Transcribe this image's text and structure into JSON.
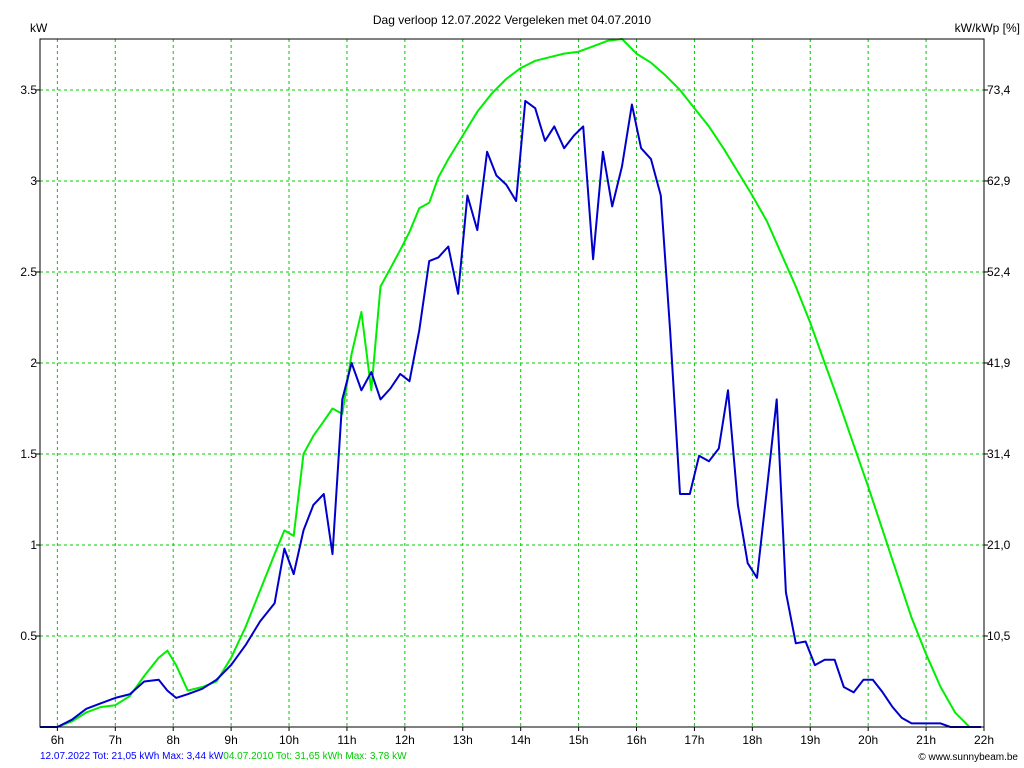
{
  "chart_data": {
    "type": "line",
    "title": "Dag  verloop 12.07.2022   Vergeleken met 04.07.2010",
    "ylabel_left": "kW",
    "ylabel_right": "kW/kWp [%]",
    "xlim": [
      5.7,
      22
    ],
    "ylim": [
      0,
      3.78
    ],
    "x_ticks": [
      {
        "value": 6,
        "label": "6h"
      },
      {
        "value": 7,
        "label": "7h"
      },
      {
        "value": 8,
        "label": "8h"
      },
      {
        "value": 9,
        "label": "9h"
      },
      {
        "value": 10,
        "label": "10h"
      },
      {
        "value": 11,
        "label": "11h"
      },
      {
        "value": 12,
        "label": "12h"
      },
      {
        "value": 13,
        "label": "13h"
      },
      {
        "value": 14,
        "label": "14h"
      },
      {
        "value": 15,
        "label": "15h"
      },
      {
        "value": 16,
        "label": "16h"
      },
      {
        "value": 17,
        "label": "17h"
      },
      {
        "value": 18,
        "label": "18h"
      },
      {
        "value": 19,
        "label": "19h"
      },
      {
        "value": 20,
        "label": "20h"
      },
      {
        "value": 21,
        "label": "21h"
      },
      {
        "value": 22,
        "label": "22h"
      }
    ],
    "y_ticks_left": [
      {
        "value": 0.5,
        "label": "0.5"
      },
      {
        "value": 1,
        "label": "1"
      },
      {
        "value": 1.5,
        "label": "1.5"
      },
      {
        "value": 2,
        "label": "2"
      },
      {
        "value": 2.5,
        "label": "2.5"
      },
      {
        "value": 3,
        "label": "3"
      },
      {
        "value": 3.5,
        "label": "3.5"
      }
    ],
    "y_ticks_right": [
      {
        "value": 0.5,
        "label": "10,5"
      },
      {
        "value": 1,
        "label": "21,0"
      },
      {
        "value": 1.5,
        "label": "31,4"
      },
      {
        "value": 2,
        "label": "41,9"
      },
      {
        "value": 2.5,
        "label": "52,4"
      },
      {
        "value": 3,
        "label": "62,9"
      },
      {
        "value": 3.5,
        "label": "73,4"
      }
    ],
    "grid": true,
    "series": [
      {
        "name": "04.07.2010",
        "color": "#00ee00",
        "x": [
          5.7,
          6.0,
          6.25,
          6.5,
          6.75,
          7.0,
          7.25,
          7.5,
          7.75,
          7.9,
          8.05,
          8.25,
          8.5,
          8.75,
          9.0,
          9.25,
          9.5,
          9.75,
          9.92,
          10.08,
          10.25,
          10.42,
          10.6,
          10.75,
          10.92,
          11.08,
          11.25,
          11.42,
          11.58,
          11.75,
          11.92,
          12.08,
          12.25,
          12.42,
          12.58,
          12.75,
          13.0,
          13.25,
          13.5,
          13.75,
          14.0,
          14.25,
          14.5,
          14.75,
          15.0,
          15.25,
          15.5,
          15.75,
          16.0,
          16.25,
          16.5,
          16.75,
          17.0,
          17.25,
          17.5,
          17.75,
          18.0,
          18.25,
          18.5,
          18.75,
          19.0,
          19.25,
          19.5,
          19.75,
          20.0,
          20.25,
          20.5,
          20.75,
          21.0,
          21.25,
          21.5,
          21.75,
          21.95
        ],
        "values": [
          0.0,
          0.0,
          0.03,
          0.08,
          0.11,
          0.12,
          0.17,
          0.28,
          0.38,
          0.42,
          0.34,
          0.2,
          0.22,
          0.25,
          0.38,
          0.55,
          0.75,
          0.95,
          1.08,
          1.05,
          1.5,
          1.6,
          1.68,
          1.75,
          1.72,
          2.05,
          2.28,
          1.85,
          2.42,
          2.52,
          2.62,
          2.72,
          2.85,
          2.88,
          3.02,
          3.12,
          3.25,
          3.38,
          3.48,
          3.56,
          3.62,
          3.66,
          3.68,
          3.7,
          3.71,
          3.74,
          3.77,
          3.78,
          3.7,
          3.65,
          3.58,
          3.5,
          3.4,
          3.3,
          3.18,
          3.05,
          2.92,
          2.78,
          2.6,
          2.42,
          2.22,
          2.0,
          1.78,
          1.55,
          1.32,
          1.08,
          0.84,
          0.6,
          0.4,
          0.22,
          0.08,
          0.0,
          0.0
        ]
      },
      {
        "name": "12.07.2022",
        "color": "#0000cc",
        "x": [
          5.7,
          6.0,
          6.25,
          6.5,
          6.75,
          7.0,
          7.25,
          7.5,
          7.75,
          7.9,
          8.05,
          8.25,
          8.5,
          8.75,
          9.0,
          9.25,
          9.5,
          9.75,
          9.92,
          10.08,
          10.25,
          10.42,
          10.6,
          10.75,
          10.92,
          11.08,
          11.25,
          11.42,
          11.58,
          11.75,
          11.92,
          12.08,
          12.25,
          12.42,
          12.58,
          12.75,
          12.92,
          13.08,
          13.25,
          13.42,
          13.58,
          13.75,
          13.92,
          14.08,
          14.25,
          14.42,
          14.58,
          14.75,
          14.92,
          15.08,
          15.25,
          15.42,
          15.58,
          15.75,
          15.92,
          16.08,
          16.25,
          16.42,
          16.58,
          16.75,
          16.92,
          17.08,
          17.25,
          17.42,
          17.58,
          17.75,
          17.92,
          18.08,
          18.25,
          18.42,
          18.58,
          18.75,
          18.92,
          19.08,
          19.25,
          19.42,
          19.58,
          19.75,
          19.92,
          20.08,
          20.25,
          20.42,
          20.58,
          20.75,
          20.92,
          21.08,
          21.25,
          21.42,
          21.58,
          21.75,
          21.95
        ],
        "values": [
          0.0,
          0.0,
          0.04,
          0.1,
          0.13,
          0.16,
          0.18,
          0.25,
          0.26,
          0.2,
          0.16,
          0.18,
          0.21,
          0.26,
          0.34,
          0.45,
          0.58,
          0.68,
          0.98,
          0.84,
          1.08,
          1.22,
          1.28,
          0.95,
          1.8,
          2.0,
          1.85,
          1.95,
          1.8,
          1.86,
          1.94,
          1.9,
          2.18,
          2.56,
          2.58,
          2.64,
          2.38,
          2.92,
          2.73,
          3.16,
          3.03,
          2.98,
          2.89,
          3.44,
          3.4,
          3.22,
          3.3,
          3.18,
          3.25,
          3.3,
          2.57,
          3.16,
          2.86,
          3.08,
          3.42,
          3.18,
          3.12,
          2.92,
          2.18,
          1.28,
          1.28,
          1.49,
          1.46,
          1.53,
          1.85,
          1.22,
          0.9,
          0.82,
          1.3,
          1.8,
          0.74,
          0.46,
          0.47,
          0.34,
          0.37,
          0.37,
          0.22,
          0.19,
          0.26,
          0.26,
          0.19,
          0.11,
          0.05,
          0.02,
          0.02,
          0.02,
          0.02,
          0.0,
          0.0,
          0.0,
          0.0
        ]
      }
    ],
    "footer": {
      "left": "12.07.2022 Tot: 21,05 kWh Max: 3,44 kW",
      "right": "04.07.2010 Tot: 31,65 kWh Max: 3,78 kW"
    },
    "credit": "© www.sunnybeam.be"
  }
}
